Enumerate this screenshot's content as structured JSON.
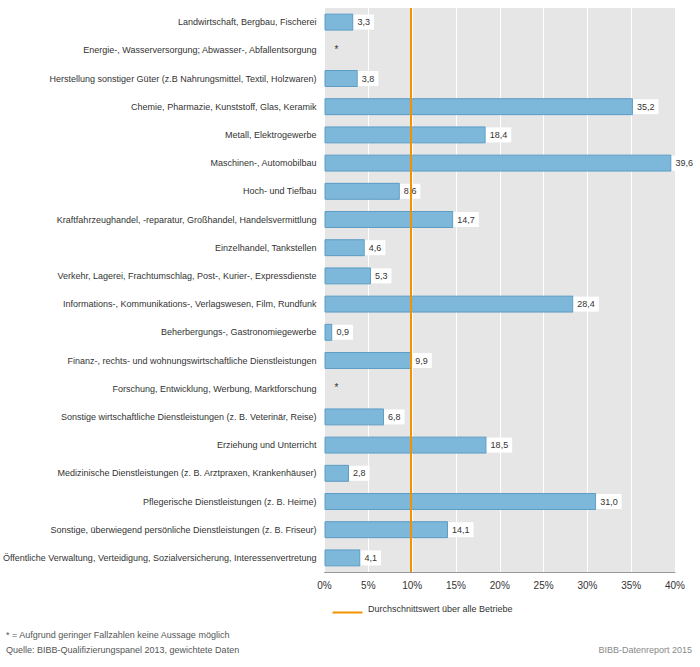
{
  "chart_data": {
    "type": "bar",
    "orientation": "horizontal",
    "categories": [
      "Landwirtschaft, Bergbau, Fischerei",
      "Energie-, Wasserversorgung; Abwasser-, Abfallentsorgung",
      "Herstellung sonstiger Güter (z.B Nahrungsmittel, Textil, Holzwaren)",
      "Chemie, Pharmazie, Kunststoff, Glas, Keramik",
      "Metall, Elektrogewerbe",
      "Maschinen-, Automobilbau",
      "Hoch- und Tiefbau",
      "Kraftfahrzeughandel, -reparatur, Großhandel, Handelsvermittlung",
      "Einzelhandel, Tankstellen",
      "Verkehr, Lagerei, Frachtumschlag, Post-, Kurier-, Expressdienste",
      "Informations-, Kommunikations-, Verlagswesen, Film, Rundfunk",
      "Beherbergungs-, Gastronomiegewerbe",
      "Finanz-, rechts- und wohnungswirtschaftliche Dienstleistungen",
      "Forschung, Entwicklung, Werbung, Marktforschung",
      "Sonstige wirtschaftliche Dienstleistungen (z. B. Veterinär, Reise)",
      "Erziehung und Unterricht",
      "Medizinische Dienstleistungen (z. B. Arztpraxen, Krankenhäuser)",
      "Pflegerische Dienstleistungen (z. B. Heime)",
      "Sonstige, überwiegend persönliche Dienstleistungen (z. B. Friseur)",
      "Öffentliche Verwaltung, Verteidigung, Sozialversicherung, Interessenvertretung"
    ],
    "values": [
      3.3,
      null,
      3.8,
      35.2,
      18.4,
      39.6,
      8.6,
      14.7,
      4.6,
      5.3,
      28.4,
      0.9,
      9.9,
      null,
      6.8,
      18.5,
      2.8,
      31.0,
      14.1,
      4.1
    ],
    "value_labels": [
      "3,3",
      "*",
      "3,8",
      "35,2",
      "18,4",
      "39,6",
      "8,6",
      "14,7",
      "4,6",
      "5,3",
      "28,4",
      "0,9",
      "9,9",
      "*",
      "6,8",
      "18,5",
      "2,8",
      "31,0",
      "14,1",
      "4,1"
    ],
    "data_labels": true,
    "color": "#7db8da",
    "xlim": [
      0,
      40
    ],
    "xticks": [
      {
        "value": 0,
        "label": "0%"
      },
      {
        "value": 5,
        "label": "5%"
      },
      {
        "value": 10,
        "label": "10%"
      },
      {
        "value": 15,
        "label": "15%"
      },
      {
        "value": 20,
        "label": "20%"
      },
      {
        "value": 25,
        "label": "25%"
      },
      {
        "value": 30,
        "label": "30%"
      },
      {
        "value": 35,
        "label": "35%"
      },
      {
        "value": 40,
        "label": "40%"
      }
    ],
    "grid": true,
    "reference_line": {
      "value": 9.8,
      "label": "Durchschnittswert über alle Betriebe",
      "color": "#f39200"
    },
    "notes": [
      "* = Aufgrund geringer Fallzahlen keine Aussage möglich",
      "Quelle: BIBB-Qualifizierungspanel 2013, gewichtete Daten"
    ],
    "credit": "BIBB-Datenreport 2015"
  }
}
